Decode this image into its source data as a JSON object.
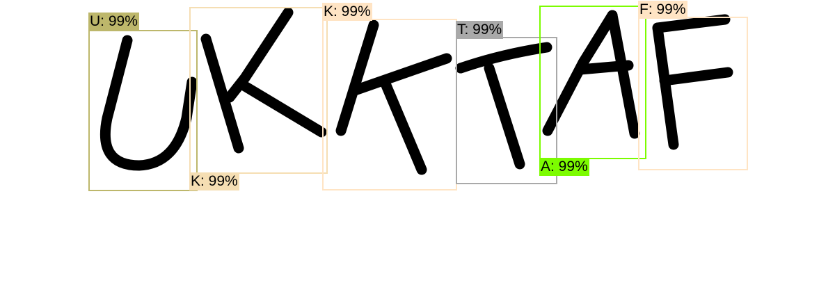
{
  "detections": [
    {
      "text": "U: 99%",
      "color": "#bdb76b"
    },
    {
      "text": "K: 99%",
      "color": "#f5deb3"
    },
    {
      "text": "K: 99%",
      "color": "#ffe4c4"
    },
    {
      "text": "T: 99%",
      "color": "#a9a9a9"
    },
    {
      "text": "A: 99%",
      "color": "#7cfc00"
    },
    {
      "text": "F: 99%",
      "color": "#ffe4c4"
    }
  ]
}
